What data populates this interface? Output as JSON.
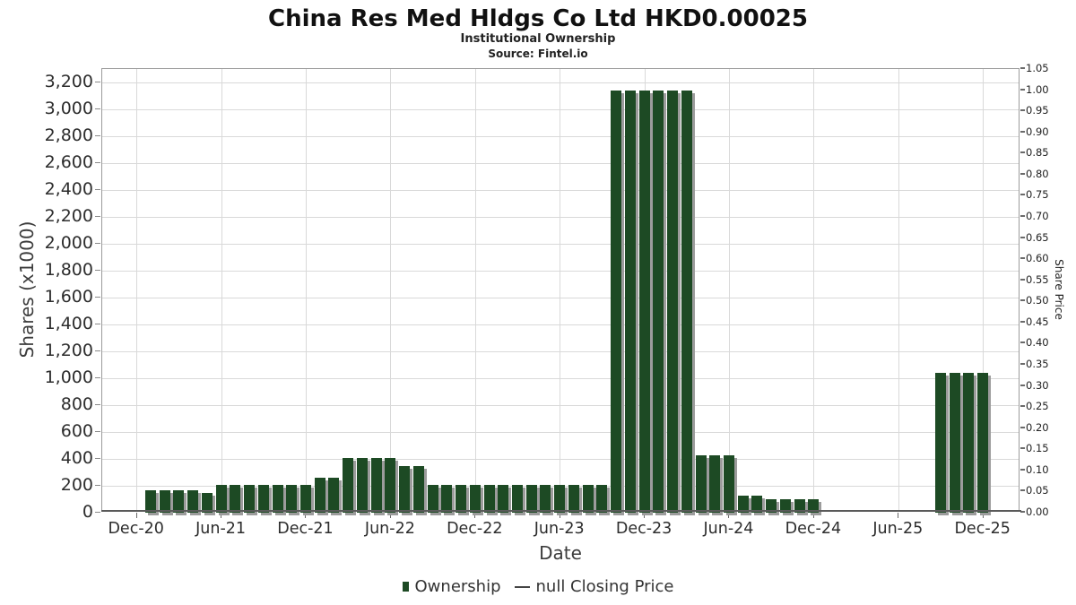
{
  "header": {
    "title": "China Res Med Hldgs Co Ltd HKD0.00025",
    "subtitle": "Institutional Ownership",
    "source": "Source: Fintel.io"
  },
  "colors": {
    "bar": "#1d4a24",
    "bar_shadow": "#9c9c9c",
    "grid": "#d9d9d9",
    "axis_line": "#5a5a5a",
    "plot_border": "#9b9b9b"
  },
  "chart_data": {
    "type": "bar",
    "title": "China Res Med Hldgs Co Ltd HKD0.00025",
    "subtitle": "Institutional Ownership",
    "source": "Source: Fintel.io",
    "xlabel": "Date",
    "ylabel_left": "Shares (x1000)",
    "ylabel_right": "Share Price",
    "grid": true,
    "x_ticks": [
      "Dec-20",
      "Jun-21",
      "Dec-21",
      "Jun-22",
      "Dec-22",
      "Jun-23",
      "Dec-23",
      "Jun-24",
      "Dec-24",
      "Jun-25",
      "Dec-25"
    ],
    "y_left_axis": {
      "min": 0,
      "max": 3200,
      "step": 200
    },
    "y_right_axis": {
      "min": 0.0,
      "max": 1.05,
      "step": 0.05
    },
    "legend": [
      {
        "label": "Ownership",
        "marker": "square",
        "color": "#1d4a24"
      },
      {
        "label": "null Closing Price",
        "marker": "dash",
        "color": "#444444"
      }
    ],
    "series": [
      {
        "name": "Ownership",
        "unit": "shares x1000",
        "points": [
          {
            "date": "Jan-21",
            "value": 165
          },
          {
            "date": "Feb-21",
            "value": 165
          },
          {
            "date": "Mar-21",
            "value": 165
          },
          {
            "date": "Apr-21",
            "value": 165
          },
          {
            "date": "May-21",
            "value": 150
          },
          {
            "date": "Jun-21",
            "value": 205
          },
          {
            "date": "Jul-21",
            "value": 205
          },
          {
            "date": "Aug-21",
            "value": 205
          },
          {
            "date": "Sep-21",
            "value": 205
          },
          {
            "date": "Oct-21",
            "value": 205
          },
          {
            "date": "Nov-21",
            "value": 205
          },
          {
            "date": "Dec-21",
            "value": 205
          },
          {
            "date": "Jan-22",
            "value": 260
          },
          {
            "date": "Feb-22",
            "value": 260
          },
          {
            "date": "Mar-22",
            "value": 405
          },
          {
            "date": "Apr-22",
            "value": 405
          },
          {
            "date": "May-22",
            "value": 405
          },
          {
            "date": "Jun-22",
            "value": 410
          },
          {
            "date": "Jul-22",
            "value": 345
          },
          {
            "date": "Aug-22",
            "value": 345
          },
          {
            "date": "Sep-22",
            "value": 205
          },
          {
            "date": "Oct-22",
            "value": 205
          },
          {
            "date": "Nov-22",
            "value": 205
          },
          {
            "date": "Dec-22",
            "value": 205
          },
          {
            "date": "Jan-23",
            "value": 205
          },
          {
            "date": "Feb-23",
            "value": 205
          },
          {
            "date": "Mar-23",
            "value": 205
          },
          {
            "date": "Apr-23",
            "value": 205
          },
          {
            "date": "May-23",
            "value": 205
          },
          {
            "date": "Jun-23",
            "value": 205
          },
          {
            "date": "Jul-23",
            "value": 205
          },
          {
            "date": "Aug-23",
            "value": 205
          },
          {
            "date": "Sep-23",
            "value": 205
          },
          {
            "date": "Oct-23",
            "value": 3140
          },
          {
            "date": "Nov-23",
            "value": 3140
          },
          {
            "date": "Dec-23",
            "value": 3140
          },
          {
            "date": "Jan-24",
            "value": 3140
          },
          {
            "date": "Feb-24",
            "value": 3140
          },
          {
            "date": "Mar-24",
            "value": 3140
          },
          {
            "date": "Apr-24",
            "value": 430
          },
          {
            "date": "May-24",
            "value": 430
          },
          {
            "date": "Jun-24",
            "value": 430
          },
          {
            "date": "Jul-24",
            "value": 130
          },
          {
            "date": "Aug-24",
            "value": 130
          },
          {
            "date": "Sep-24",
            "value": 100
          },
          {
            "date": "Oct-24",
            "value": 100
          },
          {
            "date": "Nov-24",
            "value": 100
          },
          {
            "date": "Dec-24",
            "value": 100
          },
          {
            "date": "Sep-25",
            "value": 1040
          },
          {
            "date": "Oct-25",
            "value": 1040
          },
          {
            "date": "Nov-25",
            "value": 1040
          },
          {
            "date": "Dec-25",
            "value": 1040
          }
        ]
      }
    ]
  }
}
